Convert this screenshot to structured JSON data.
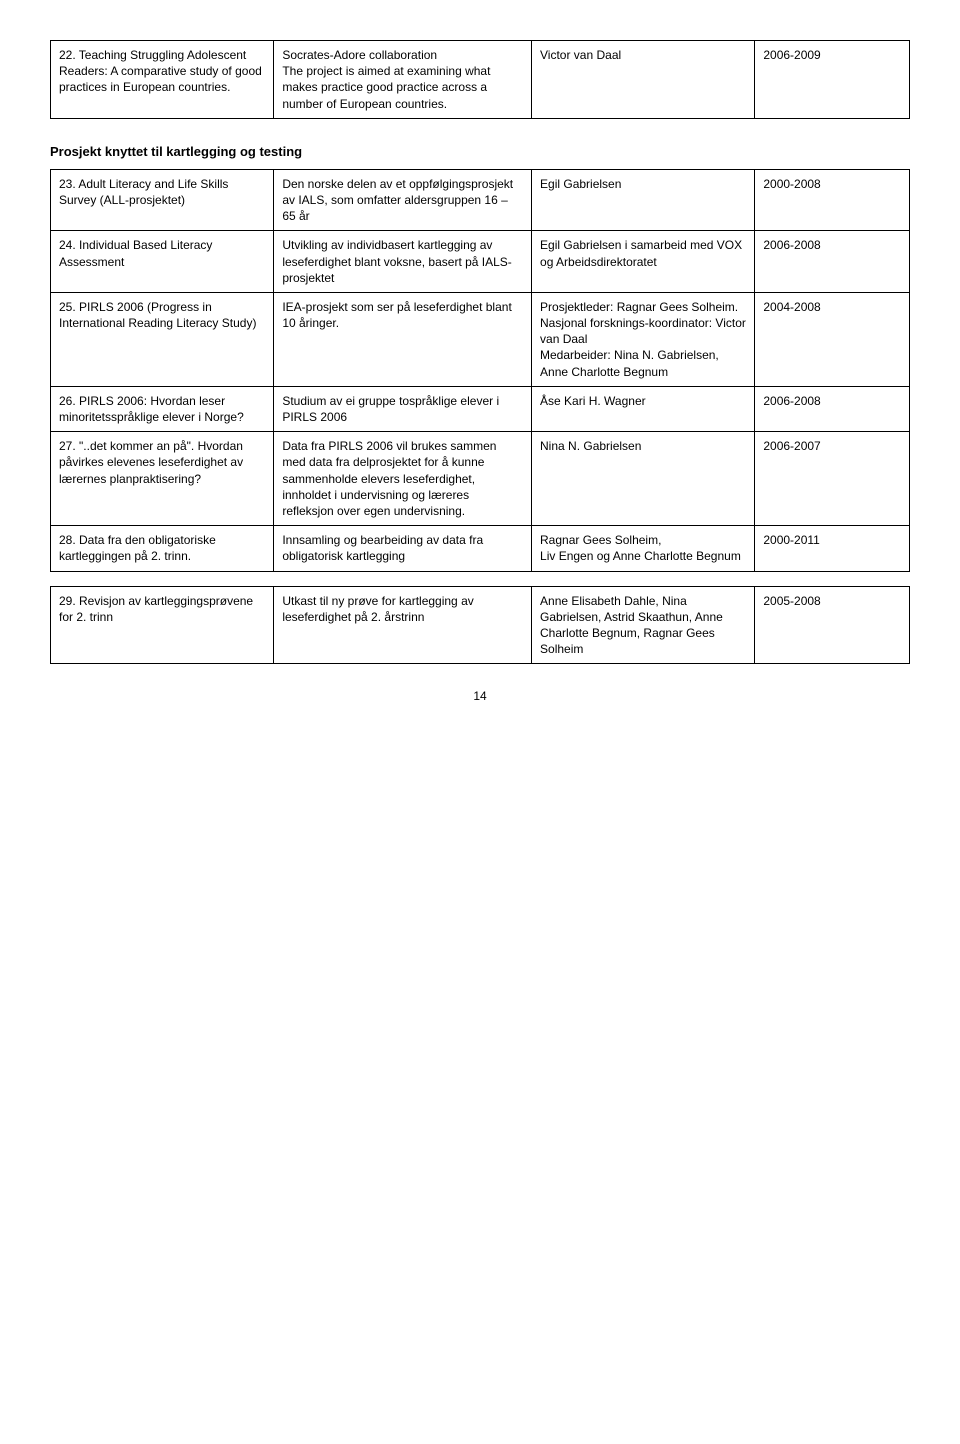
{
  "table1": {
    "rows": [
      {
        "c1": "22. Teaching Struggling Adolescent Readers: A comparative study of good practices in European countries.",
        "c2": "Socrates-Adore collaboration\nThe project is aimed at examining what makes practice good practice across a number of European countries.",
        "c3": "Victor van Daal",
        "c4": "2006-2009"
      }
    ]
  },
  "heading": "Prosjekt knyttet til kartlegging og testing",
  "table2": {
    "rows": [
      {
        "c1": "23. Adult Literacy and Life Skills Survey (ALL-prosjektet)",
        "c2": "Den norske delen av et oppfølgingsprosjekt av IALS, som omfatter aldersgruppen 16 – 65 år",
        "c3": "Egil Gabrielsen",
        "c4": "2000-2008"
      },
      {
        "c1": "24. Individual Based Literacy Assessment",
        "c2": "Utvikling av individbasert kartlegging av leseferdighet blant voksne, basert på IALS-prosjektet",
        "c3": "Egil Gabrielsen i samarbeid med VOX og Arbeidsdirektoratet",
        "c4": "2006-2008"
      },
      {
        "c1": "25. PIRLS 2006 (Progress in International Reading Literacy Study)",
        "c2": "IEA-prosjekt som ser på leseferdighet blant 10 åringer.",
        "c3": "Prosjektleder: Ragnar Gees Solheim.\nNasjonal forsknings-koordinator: Victor van Daal\nMedarbeider: Nina N. Gabrielsen, Anne Charlotte Begnum",
        "c4": "2004-2008"
      },
      {
        "c1": "26. PIRLS 2006: Hvordan leser minoritetsspråklige elever i Norge?",
        "c2": "Studium av ei gruppe tospråklige elever i PIRLS 2006",
        "c3": "Åse Kari H. Wagner",
        "c4": "2006-2008"
      },
      {
        "c1": "27. \"..det kommer an på\". Hvordan påvirkes elevenes leseferdighet av lærernes planpraktisering?",
        "c2": "Data fra PIRLS 2006 vil brukes sammen med data fra delprosjektet for å kunne sammenholde elevers leseferdighet, innholdet i undervisning og læreres refleksjon over egen undervisning.",
        "c3": "Nina N. Gabrielsen",
        "c4": "2006-2007"
      },
      {
        "c1": "28. Data fra den obligatoriske kartleggingen på 2. trinn.",
        "c2": "Innsamling og bearbeiding av data fra obligatorisk kartlegging",
        "c3": "Ragnar Gees Solheim,\nLiv Engen og Anne Charlotte Begnum",
        "c4": "2000-2011"
      }
    ]
  },
  "table3": {
    "rows": [
      {
        "c1": "29. Revisjon av kartleggingsprøvene for 2. trinn",
        "c2": "Utkast til ny prøve for kartlegging av leseferdighet på 2. årstrinn",
        "c3": "Anne Elisabeth Dahle, Nina Gabrielsen, Astrid Skaathun, Anne Charlotte Begnum, Ragnar Gees Solheim",
        "c4": "2005-2008"
      }
    ]
  },
  "page": "14"
}
